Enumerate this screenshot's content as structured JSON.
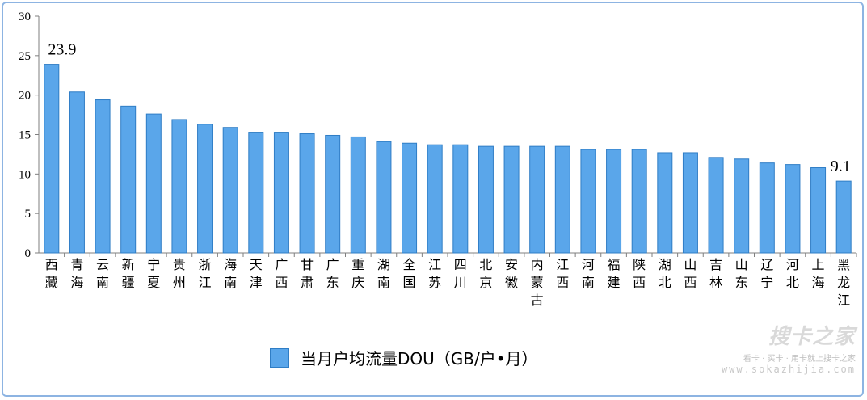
{
  "chart_data": {
    "type": "bar",
    "categories": [
      [
        "西",
        "藏"
      ],
      [
        "青",
        "海"
      ],
      [
        "云",
        "南"
      ],
      [
        "新",
        "疆"
      ],
      [
        "宁",
        "夏"
      ],
      [
        "贵",
        "州"
      ],
      [
        "浙",
        "江"
      ],
      [
        "海",
        "南"
      ],
      [
        "天",
        "津"
      ],
      [
        "广",
        "西"
      ],
      [
        "甘",
        "肃"
      ],
      [
        "广",
        "东"
      ],
      [
        "重",
        "庆"
      ],
      [
        "湖",
        "南"
      ],
      [
        "全",
        "国"
      ],
      [
        "江",
        "苏"
      ],
      [
        "四",
        "川"
      ],
      [
        "北",
        "京"
      ],
      [
        "安",
        "徽"
      ],
      [
        "内",
        "蒙",
        "古"
      ],
      [
        "江",
        "西"
      ],
      [
        "河",
        "南"
      ],
      [
        "福",
        "建"
      ],
      [
        "陕",
        "西"
      ],
      [
        "湖",
        "北"
      ],
      [
        "山",
        "西"
      ],
      [
        "吉",
        "林"
      ],
      [
        "山",
        "东"
      ],
      [
        "辽",
        "宁"
      ],
      [
        "河",
        "北"
      ],
      [
        "上",
        "海"
      ],
      [
        "黑",
        "龙",
        "江"
      ]
    ],
    "values": [
      23.9,
      20.4,
      19.4,
      18.6,
      17.6,
      16.9,
      16.3,
      15.9,
      15.3,
      15.3,
      15.1,
      14.9,
      14.7,
      14.1,
      13.9,
      13.7,
      13.7,
      13.5,
      13.5,
      13.5,
      13.5,
      13.1,
      13.1,
      13.1,
      12.7,
      12.7,
      12.1,
      11.9,
      11.4,
      11.2,
      10.8,
      9.1
    ],
    "data_labels": [
      {
        "index": 0,
        "text": "23.9"
      },
      {
        "index": 31,
        "text": "9.1"
      }
    ],
    "yticks": [
      "0",
      "5",
      "10",
      "15",
      "20",
      "25",
      "30"
    ],
    "ylim": [
      0,
      30
    ],
    "series": [
      {
        "name": "当月户均流量DOU（GB/户•月）"
      }
    ],
    "legend_position": "bottom",
    "grid": false,
    "colors": {
      "bar_fill": "#5aa6ea",
      "bar_stroke": "#2f7dc5",
      "axis": "#7f7f7f"
    }
  },
  "watermark": {
    "brand": "搜卡之家",
    "slogan": "看卡 · 买卡 · 用卡就上搜卡之家",
    "url": "www.sokazhijia.com"
  }
}
